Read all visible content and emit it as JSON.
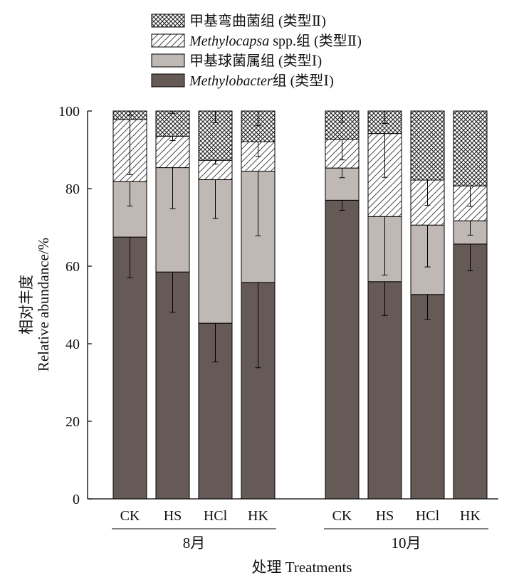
{
  "chart_data": {
    "type": "bar",
    "stacked": true,
    "ylabel_cn": "相对丰度",
    "ylabel": "Relative abundance/%",
    "xlabel": "处理 Treatments",
    "ylim": [
      0,
      100
    ],
    "yticks": [
      0,
      20,
      40,
      60,
      80,
      100
    ],
    "grid": false,
    "legend_position": "top",
    "groups": [
      {
        "label": "8月",
        "categories": [
          "CK",
          "HS",
          "HCl",
          "HK"
        ]
      },
      {
        "label": "10月",
        "categories": [
          "CK",
          "HS",
          "HCl",
          "HK"
        ]
      }
    ],
    "series": [
      {
        "legend_main": "Methylobacter",
        "legend_suffix": "组 (类型Ⅰ)",
        "italic": true,
        "fill": "#665a56",
        "pattern": "solid",
        "values": [
          67.5,
          58.5,
          45.3,
          55.8,
          77.0,
          56.0,
          52.7,
          65.7
        ],
        "errors": [
          10.5,
          10.4,
          10.0,
          22.0,
          2.6,
          8.7,
          6.4,
          6.9
        ]
      },
      {
        "legend_main": "甲基球菌属组 (类型Ⅰ)",
        "legend_suffix": "",
        "italic": false,
        "fill": "#bfb8b5",
        "pattern": "solid",
        "values": [
          14.3,
          26.9,
          37.0,
          28.7,
          8.3,
          16.8,
          17.9,
          6.0
        ],
        "errors": [
          6.3,
          10.6,
          10.0,
          16.7,
          2.5,
          15.1,
          10.8,
          3.7
        ]
      },
      {
        "legend_main": "Methylocapsa",
        "legend_suffix": " spp.组 (类型Ⅱ)",
        "italic": true,
        "fill": "#ffffff",
        "pattern": "diagonal",
        "values": [
          16.0,
          8.1,
          5.0,
          7.6,
          7.4,
          21.4,
          11.6,
          9.0
        ],
        "errors": [
          14.2,
          1.1,
          1.0,
          3.8,
          5.3,
          11.3,
          6.5,
          5.3
        ]
      },
      {
        "legend_main": "甲基弯曲菌组 (类型Ⅱ)",
        "legend_suffix": "",
        "italic": false,
        "fill": "#ffffff",
        "pattern": "crosshatch",
        "values": [
          2.2,
          6.5,
          12.7,
          7.9,
          7.3,
          5.8,
          17.8,
          19.3
        ],
        "errors": [
          1.1,
          0.6,
          3.0,
          3.8,
          2.9,
          3.2,
          0,
          0
        ]
      }
    ]
  }
}
